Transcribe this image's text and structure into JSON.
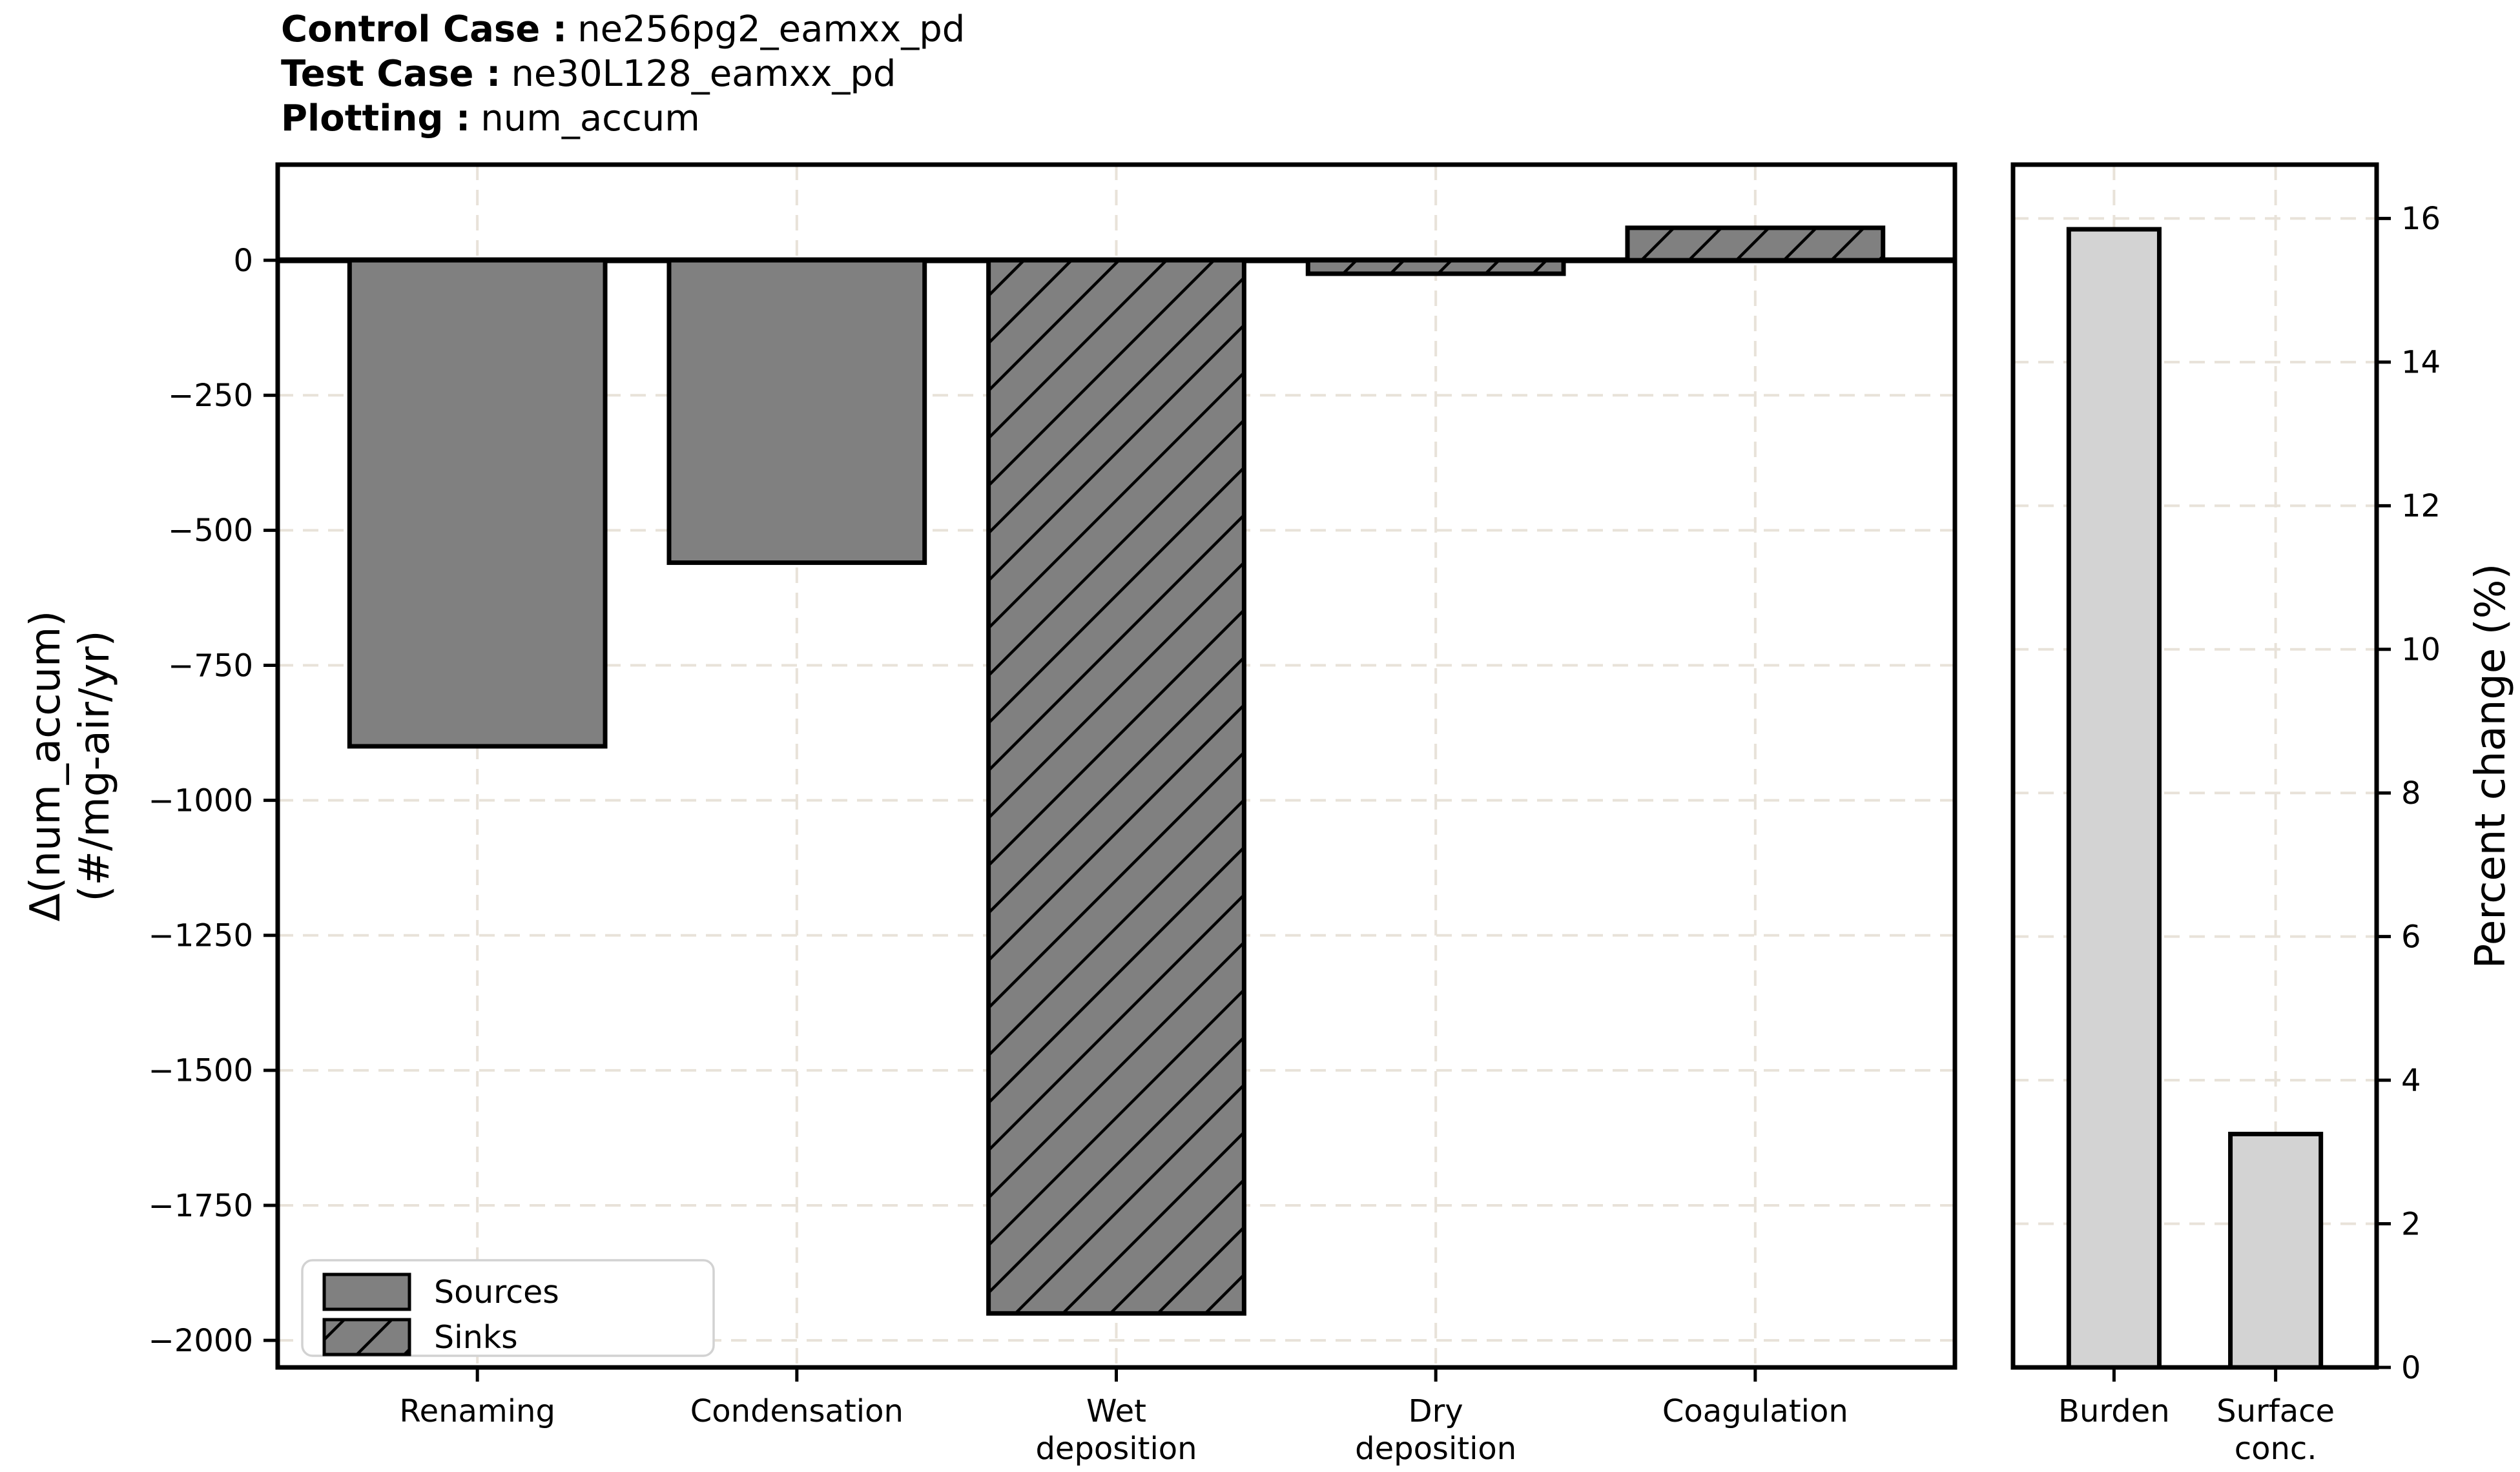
{
  "header": {
    "control_label": "Control Case :",
    "control_value": "ne256pg2_eamxx_pd",
    "test_label": "Test Case :",
    "test_value": "ne30L128_eamxx_pd",
    "plotting_label": "Plotting :",
    "plotting_value": "num_accum"
  },
  "colors": {
    "bar_gray": "#808080",
    "bar_lightgray": "#d3d3d3",
    "edge": "#000000",
    "grid": "#e8e2d9",
    "legend_border": "#d2d2d2",
    "background": "#ffffff"
  },
  "chart_data": [
    {
      "type": "bar",
      "panel": "flux-terms",
      "ylabel": "Δ(num_accum)\n(#/mg-air/yr)",
      "categories": [
        "Renaming",
        "Condensation",
        "Wet\ndeposition",
        "Dry\ndeposition",
        "Coagulation"
      ],
      "values": [
        -900,
        -560,
        -1950,
        -25,
        60
      ],
      "bar_styles": [
        "source",
        "source",
        "sink",
        "sink",
        "sink"
      ],
      "yticks": [
        0,
        -250,
        -500,
        -750,
        -1000,
        -1250,
        -1500,
        -1750,
        -2000
      ],
      "ylim": [
        -2050,
        177
      ],
      "grid": true,
      "legend": {
        "position": "lower left",
        "entries": [
          {
            "label": "Sources",
            "style": "source"
          },
          {
            "label": "Sinks",
            "style": "sink"
          }
        ]
      }
    },
    {
      "type": "bar",
      "panel": "percent-change",
      "ylabel": "Percent change (%)",
      "categories": [
        "Burden",
        "Surface\nconc."
      ],
      "values": [
        15.85,
        3.25
      ],
      "bar_styles": [
        "percent",
        "percent"
      ],
      "yticks": [
        0,
        2,
        4,
        6,
        8,
        10,
        12,
        14,
        16
      ],
      "ylim": [
        0,
        16.75
      ],
      "grid": true
    }
  ]
}
